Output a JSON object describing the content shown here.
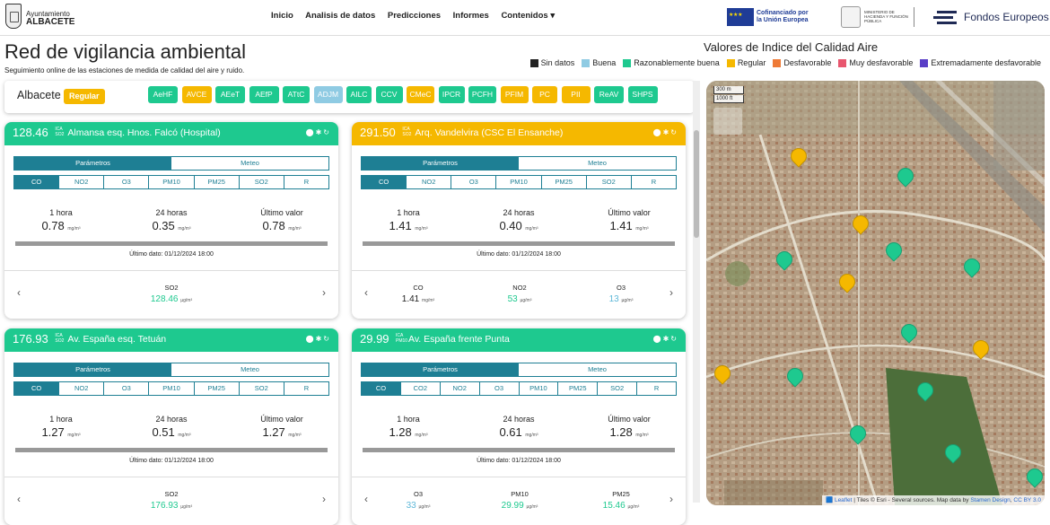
{
  "header": {
    "logo_line1": "Ayuntamiento",
    "logo_line2": "ALBACETE",
    "nav": [
      "Inicio",
      "Analisis de datos",
      "Predicciones",
      "Informes",
      "Contenidos ▾"
    ],
    "eu_line1": "Cofinanciado por",
    "eu_line2": "la Unión Europea",
    "ministry": "MINISTERIO DE HACIENDA Y FUNCIÓN PÚBLICA",
    "fondos": "Fondos Europeos"
  },
  "page": {
    "title": "Red de vigilancia ambiental",
    "subtitle": "Seguimiento online de las estaciones de medida de calidad del aire y ruido."
  },
  "legend": {
    "title": "Valores de Indice del Calidad Aire",
    "items": [
      {
        "label": "Sin datos",
        "color": "#222222"
      },
      {
        "label": "Buena",
        "color": "#8fcbe3"
      },
      {
        "label": "Razonablemente buena",
        "color": "#1ec98f"
      },
      {
        "label": "Regular",
        "color": "#f5b800"
      },
      {
        "label": "Desfavorable",
        "color": "#ee7a36"
      },
      {
        "label": "Muy desfavorable",
        "color": "#e8566e"
      },
      {
        "label": "Extremadamente desfavorable",
        "color": "#5a3fc7"
      }
    ]
  },
  "status": {
    "city": "Albacete",
    "quality": "Regular",
    "stations": [
      {
        "code": "AeHF",
        "color": "#1ec98f"
      },
      {
        "code": "AVCE",
        "color": "#f5b800"
      },
      {
        "code": "AEeT",
        "color": "#1ec98f"
      },
      {
        "code": "AEfP",
        "color": "#1ec98f"
      },
      {
        "code": "ATtC",
        "color": "#1ec98f"
      },
      {
        "code": "ADJM",
        "color": "#8fcbe3"
      },
      {
        "code": "AILC",
        "color": "#1ec98f"
      },
      {
        "code": "CCV",
        "color": "#1ec98f"
      },
      {
        "code": "CMeC",
        "color": "#f5b800"
      },
      {
        "code": "IPCR",
        "color": "#1ec98f"
      },
      {
        "code": "PCFH",
        "color": "#1ec98f"
      },
      {
        "code": "PFIM",
        "color": "#f5b800"
      },
      {
        "code": "PC",
        "color": "#f5b800"
      },
      {
        "code": "PII",
        "color": "#f5b800"
      },
      {
        "code": "ReAV",
        "color": "#1ec98f"
      },
      {
        "code": "SHPS",
        "color": "#1ec98f"
      }
    ]
  },
  "common": {
    "tab_params": "Parámetros",
    "tab_meteo": "Meteo",
    "label_1h": "1 hora",
    "label_24h": "24 horas",
    "label_last": "Último valor",
    "last_data": "Último dato: 01/12/2024 18:00",
    "unit": "mg/m³",
    "unit_ug": "µg/m³",
    "ica": "ICA",
    "prev": "‹",
    "next": "›"
  },
  "cards": [
    {
      "value": "128.46",
      "sub": "SO2",
      "name": "Almansa esq. Hnos. Falcó (Hospital)",
      "color": "#1ec98f",
      "gases": [
        "CO",
        "NO2",
        "O3",
        "PM10",
        "PM25",
        "SO2",
        "R"
      ],
      "v1h": "0.78",
      "v24h": "0.35",
      "vlast": "0.78",
      "foot": [
        {
          "label": "SO2",
          "value": "128.46",
          "color": "#1ec98f"
        }
      ]
    },
    {
      "value": "291.50",
      "sub": "SO2",
      "name": "Arq. Vandelvira (CSC El Ensanche)",
      "color": "#f5b800",
      "gases": [
        "CO",
        "NO2",
        "O3",
        "PM10",
        "PM25",
        "SO2",
        "R"
      ],
      "v1h": "1.41",
      "v24h": "0.40",
      "vlast": "1.41",
      "foot": [
        {
          "label": "CO",
          "value": "1.41",
          "color": "#222222",
          "unit": "mg/m³"
        },
        {
          "label": "NO2",
          "value": "53",
          "color": "#1ec98f"
        },
        {
          "label": "O3",
          "value": "13",
          "color": "#5fb8d8"
        }
      ]
    },
    {
      "value": "176.93",
      "sub": "SO2",
      "name": "Av. España esq. Tetuán",
      "color": "#1ec98f",
      "gases": [
        "CO",
        "NO2",
        "O3",
        "PM10",
        "PM25",
        "SO2",
        "R"
      ],
      "v1h": "1.27",
      "v24h": "0.51",
      "vlast": "1.27",
      "foot": [
        {
          "label": "SO2",
          "value": "176.93",
          "color": "#1ec98f"
        }
      ]
    },
    {
      "value": "29.99",
      "sub": "PM10",
      "name": "Av. España frente Punta",
      "color": "#1ec98f",
      "gases": [
        "CO",
        "CO2",
        "NO2",
        "O3",
        "PM10",
        "PM25",
        "SO2",
        "R"
      ],
      "v1h": "1.28",
      "v24h": "0.61",
      "vlast": "1.28",
      "foot": [
        {
          "label": "O3",
          "value": "33",
          "color": "#5fb8d8"
        },
        {
          "label": "PM10",
          "value": "29.99",
          "color": "#1ec98f"
        },
        {
          "label": "PM25",
          "value": "15.46",
          "color": "#1ec98f"
        }
      ]
    }
  ],
  "map": {
    "scale_m": "300 m",
    "scale_ft": "1000 ft",
    "attribution_prefix": "🟦 ",
    "attribution_leaflet": "Leaflet",
    "attribution_mid": " | Tiles © Esri - Several sources. Map data by ",
    "attribution_stamen": "Stamen Design",
    "attribution_cc": "CC BY 3.0",
    "markers": [
      {
        "color": "#f5b800"
      },
      {
        "color": "#1ec98f"
      },
      {
        "color": "#f5b800"
      },
      {
        "color": "#1ec98f"
      },
      {
        "color": "#1ec98f"
      },
      {
        "color": "#1ec98f"
      },
      {
        "color": "#f5b800"
      },
      {
        "color": "#1ec98f"
      },
      {
        "color": "#f5b800"
      },
      {
        "color": "#1ec98f"
      },
      {
        "color": "#f5b800"
      },
      {
        "color": "#1ec98f"
      },
      {
        "color": "#1ec98f"
      },
      {
        "color": "#1ec98f"
      },
      {
        "color": "#1ec98f"
      }
    ]
  }
}
